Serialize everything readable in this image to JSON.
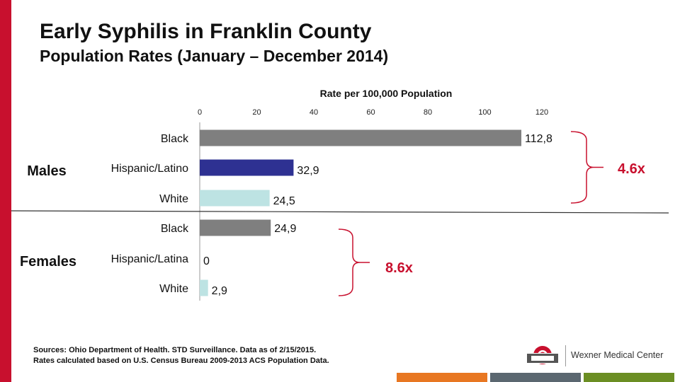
{
  "slide": {
    "title": "Early Syphilis in Franklin County",
    "subtitle": "Population Rates (January – December 2014)",
    "sources_line1": "Sources: Ohio Department of Health. STD Surveillance. Data as of 2/15/2015.",
    "sources_line2": "Rates calculated based on U.S. Census Bureau 2009-2013 ACS Population  Data.",
    "logo_text": "Wexner Medical Center",
    "logo_icon": "ohio-state-logo-icon",
    "colors": {
      "left_bar": "#c8102e",
      "footer": [
        "#e87722",
        "#5b6770",
        "#6b8e23",
        "#1f6f8b"
      ]
    }
  },
  "chart_data": {
    "type": "bar",
    "orientation": "horizontal",
    "xlabel": "Rate per 100,000 Population",
    "xlim": [
      0,
      120
    ],
    "xticks": [
      0,
      20,
      40,
      60,
      80,
      100,
      120
    ],
    "groups": [
      {
        "name": "Males",
        "bars": [
          {
            "category": "Black",
            "value": 112.8,
            "label": "112,8",
            "color": "#7f7f7f"
          },
          {
            "category": "Hispanic/Latino",
            "value": 32.9,
            "label": "32,9",
            "color": "#2e3192"
          },
          {
            "category": "White",
            "value": 24.5,
            "label": "24,5",
            "color": "#bde3e3"
          }
        ],
        "annotation": "4.6x"
      },
      {
        "name": "Females",
        "bars": [
          {
            "category": "Black",
            "value": 24.9,
            "label": "24,9",
            "color": "#7f7f7f"
          },
          {
            "category": "Hispanic/Latina",
            "value": 0,
            "label": "0",
            "color": "#2e3192"
          },
          {
            "category": "White",
            "value": 2.9,
            "label": "2,9",
            "color": "#bde3e3"
          }
        ],
        "annotation": "8.6x"
      }
    ],
    "annotation_color": "#c8102e",
    "grid": false,
    "legend": "none"
  }
}
